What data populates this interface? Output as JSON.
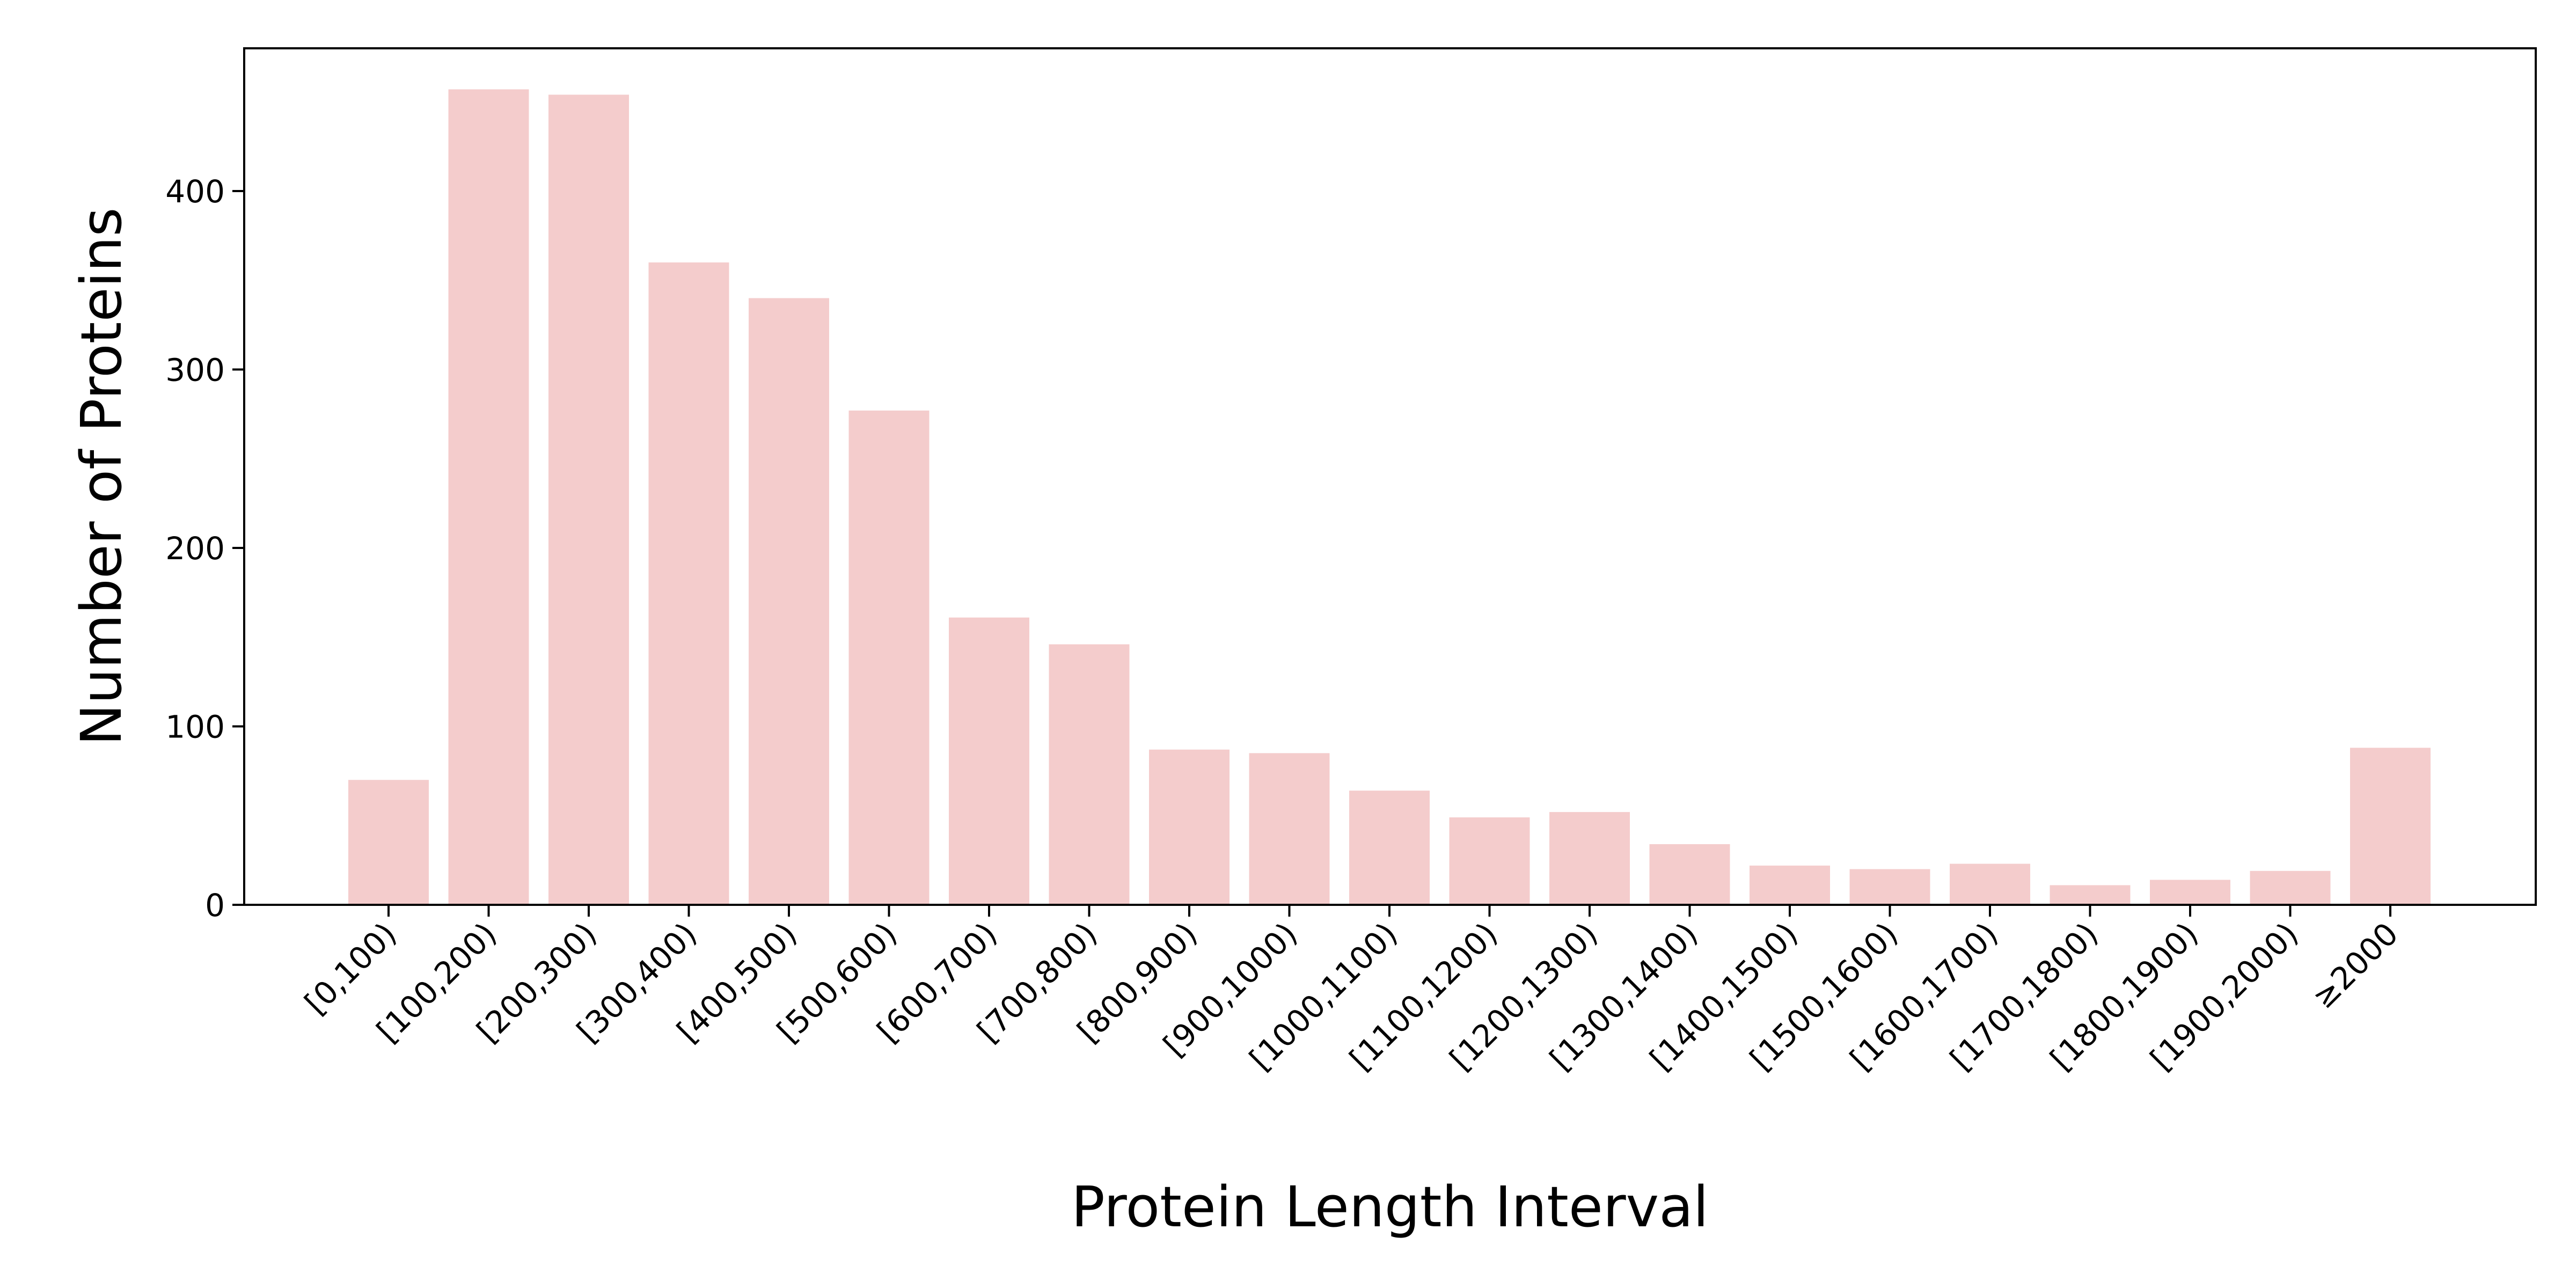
{
  "chart_data": {
    "type": "bar",
    "title": "",
    "xlabel": "Protein Length Interval",
    "ylabel": "Number of Proteins",
    "categories": [
      "[0,100)",
      "[100,200)",
      "[200,300)",
      "[300,400)",
      "[400,500)",
      "[500,600)",
      "[600,700)",
      "[700,800)",
      "[800,900)",
      "[900,1000)",
      "[1000,1100)",
      "[1100,1200)",
      "[1200,1300)",
      "[1300,1400)",
      "[1400,1500)",
      "[1500,1600)",
      "[1600,1700)",
      "[1700,1800)",
      "[1800,1900)",
      "[1900,2000)",
      "≥2000"
    ],
    "values": [
      70,
      457,
      454,
      360,
      340,
      277,
      161,
      146,
      87,
      85,
      64,
      49,
      52,
      34,
      22,
      20,
      23,
      11,
      14,
      19,
      88
    ],
    "ylim": [
      0,
      480
    ],
    "yticks": [
      0,
      100,
      200,
      300,
      400
    ],
    "bar_color": "#f4cccc",
    "grid": false,
    "legend": "none"
  }
}
